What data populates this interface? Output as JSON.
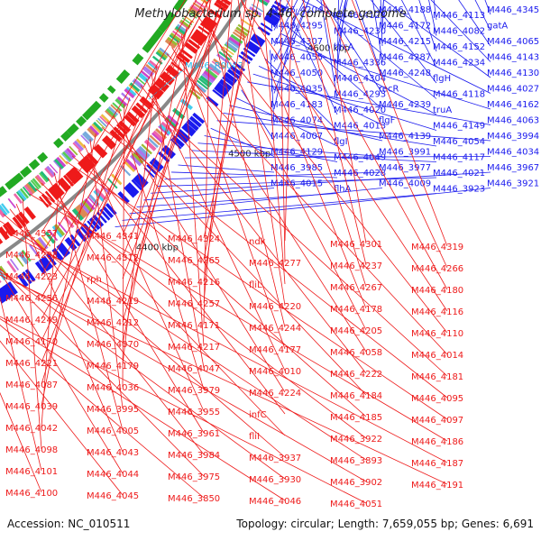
{
  "title": "Methylobacterium sp. 4-46, complete genome",
  "footer": {
    "accession": "Accession: NC_010511",
    "topology": "Topology: circular; Length: 7,659,055 bp; Genes: 6,691"
  },
  "colors": {
    "forward": "#1a1aee",
    "reverse": "#ee1a1a",
    "rna": "#22bbee",
    "backbone": "#888888"
  },
  "ticks": [
    "4900 kbp",
    "4800 kbp",
    "4700 kbp",
    "4600 kbp",
    "4500 kbp",
    "4400 kbp"
  ],
  "rna_labels": [
    "M446_R0043"
  ],
  "forward_labels": [
    "M446_4204",
    "M446_4123",
    "M446_4188",
    "M446_4113",
    "M446_4345",
    "M446_4295",
    "M446_4230",
    "M446_4172",
    "M446_4082",
    "gatA",
    "M446_4307",
    "hrcA",
    "M446_4215",
    "M446_4152",
    "M446_4065",
    "M446_4055",
    "M446_4336",
    "M446_4287",
    "M446_4234",
    "M446_4143",
    "M446_4050",
    "M446_4304",
    "M446_4248",
    "flgH",
    "M446_4130",
    "M446_4035",
    "M446_4293",
    "recR",
    "M446_4118",
    "M446_4027",
    "M446_4183",
    "M446_4020",
    "M446_4239",
    "truA",
    "M446_4162",
    "M446_4074",
    "M446_4013",
    "flgF",
    "M446_4149",
    "M446_4063",
    "M446_4007",
    "flgI",
    "M446_4139",
    "M446_4054",
    "M446_3994",
    "M446_4129",
    "M446_4049",
    "M446_3991",
    "M446_4117",
    "M446_4034",
    "M446_3985",
    "M446_4028",
    "M446_3977",
    "M446_4021",
    "M446_3967",
    "M446_4015",
    "flhA",
    "M446_4009",
    "M446_3923",
    "M446_3921"
  ],
  "reverse_labels": [
    "M446_4357",
    "M446_4341",
    "M446_4324",
    "ndk",
    "M446_4301",
    "M446_4319",
    "M446_4283",
    "M446_4312",
    "M446_4265",
    "M446_4277",
    "M446_4237",
    "M446_4266",
    "M446_4223",
    "rph",
    "M446_4216",
    "fliL",
    "M446_4267",
    "M446_4180",
    "M446_4256",
    "M446_4219",
    "M446_4257",
    "M446_4220",
    "M446_4178",
    "M446_4116",
    "M446_4249",
    "M446_4212",
    "M446_4171",
    "M446_4244",
    "M446_4205",
    "M446_4110",
    "M446_4170",
    "M446_4070",
    "M446_4217",
    "M446_4177",
    "M446_4058",
    "M446_4014",
    "M446_4221",
    "M446_4179",
    "M446_4047",
    "M446_4010",
    "M446_4222",
    "M446_4181",
    "M446_4087",
    "M446_4036",
    "M446_3979",
    "M446_4224",
    "M446_4184",
    "M446_4095",
    "M446_4039",
    "M446_3995",
    "M446_3955",
    "infC",
    "M446_4185",
    "M446_4097",
    "M446_4042",
    "M446_4005",
    "M446_3961",
    "fliI",
    "M446_3922",
    "M446_4186",
    "M446_4098",
    "M446_4043",
    "M446_3984",
    "M446_3937",
    "M446_3893",
    "M446_4187",
    "M446_4101",
    "M446_4044",
    "M446_3975",
    "M446_3930",
    "M446_3902",
    "M446_4191",
    "M446_4100",
    "M446_4045",
    "M446_3850",
    "M446_4046",
    "M446_4051"
  ]
}
